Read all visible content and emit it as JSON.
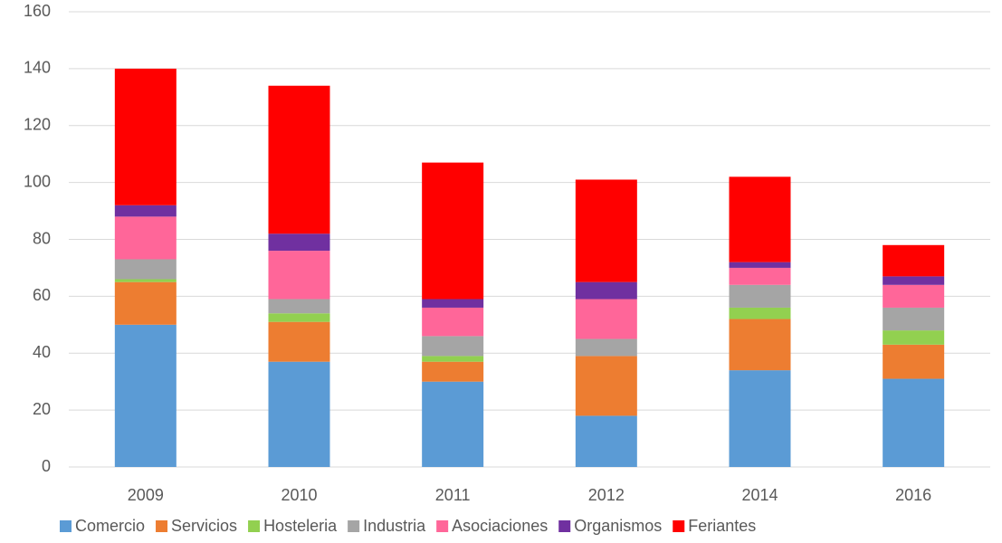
{
  "chart_data": {
    "type": "stacked_bar",
    "categories": [
      "2009",
      "2010",
      "2011",
      "2012",
      "2014",
      "2016"
    ],
    "series": [
      {
        "name": "Comercio",
        "color": "#5b9bd5",
        "values": [
          50,
          37,
          30,
          18,
          34,
          31
        ]
      },
      {
        "name": "Servicios",
        "color": "#ed7d31",
        "values": [
          15,
          14,
          7,
          21,
          18,
          12
        ]
      },
      {
        "name": "Hosteleria",
        "color": "#92d050",
        "values": [
          1,
          3,
          2,
          0,
          4,
          5
        ]
      },
      {
        "name": "Industria",
        "color": "#a5a5a5",
        "values": [
          7,
          5,
          7,
          6,
          8,
          8
        ]
      },
      {
        "name": "Asociaciones",
        "color": "#ff6699",
        "values": [
          15,
          17,
          10,
          14,
          6,
          8
        ]
      },
      {
        "name": "Organismos",
        "color": "#7030a0",
        "values": [
          4,
          6,
          3,
          6,
          2,
          3
        ]
      },
      {
        "name": "Feriantes",
        "color": "#ff0000",
        "values": [
          48,
          52,
          48,
          36,
          30,
          11
        ]
      }
    ],
    "ylim": [
      0,
      160
    ],
    "yticks": [
      0,
      20,
      40,
      60,
      80,
      100,
      120,
      140,
      160
    ],
    "grid": true,
    "legend": "bottom"
  }
}
